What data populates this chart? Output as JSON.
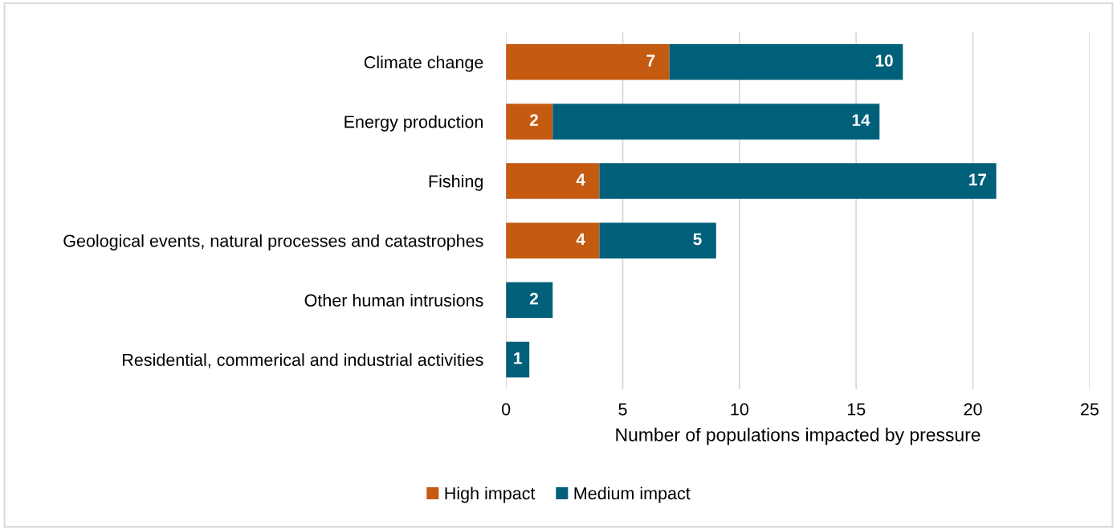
{
  "chart_data": {
    "type": "bar",
    "orientation": "horizontal",
    "stacked": true,
    "xlabel": "Number of populations impacted by pressure",
    "categories": [
      "Climate change",
      "Energy production",
      "Fishing",
      "Geological events, natural processes and catastrophes",
      "Other human intrusions",
      "Residential, commerical and industrial activities"
    ],
    "series": [
      {
        "name": "High impact",
        "color": "#c55a11",
        "values": [
          7,
          2,
          4,
          4,
          null,
          null
        ]
      },
      {
        "name": "Medium impact",
        "color": "#00607a",
        "values": [
          10,
          14,
          17,
          5,
          2,
          1
        ]
      }
    ],
    "xlim": [
      0,
      25
    ],
    "xticks": [
      0,
      5,
      10,
      15,
      20,
      25
    ],
    "grid": "x",
    "legend": "bottom",
    "data_labels": true
  }
}
